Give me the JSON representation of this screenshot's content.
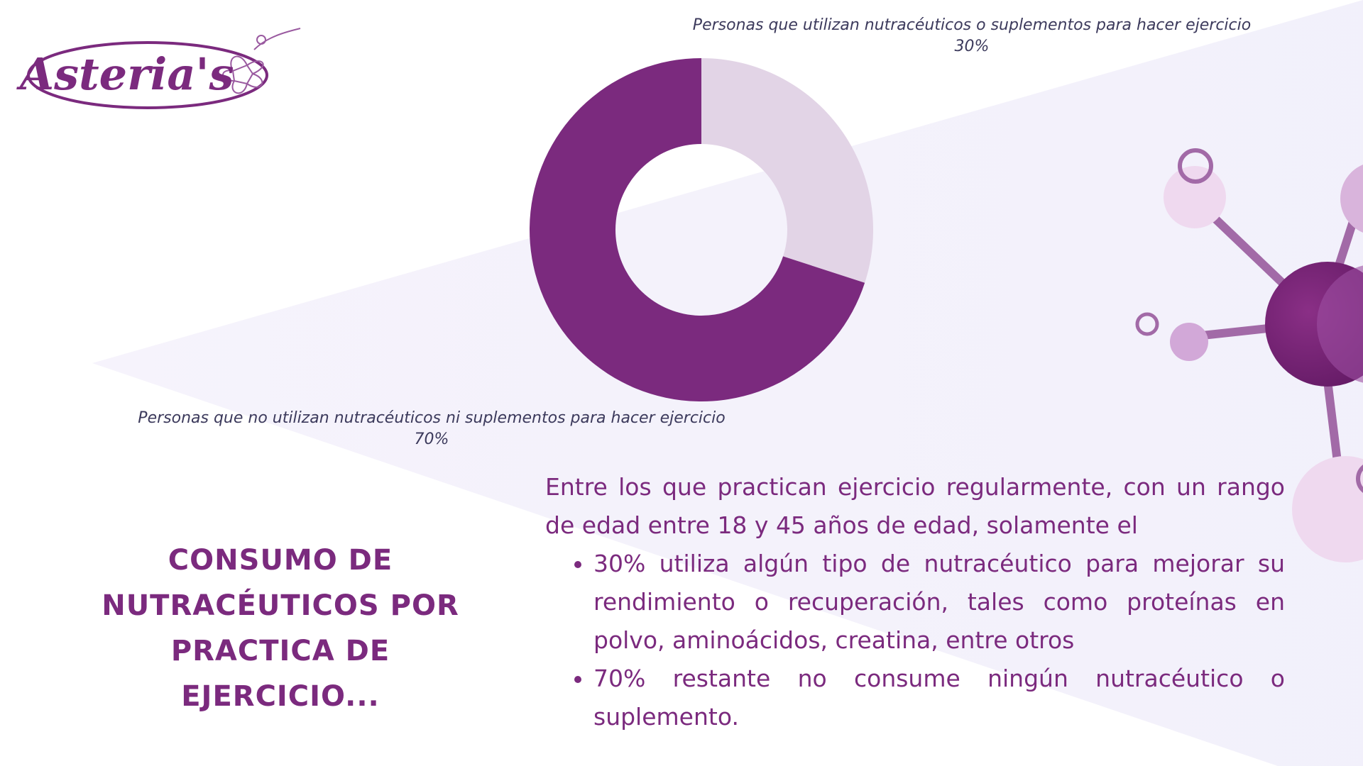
{
  "brand": {
    "logo_text": "Asteria's"
  },
  "colors": {
    "accent": "#7b2a7e",
    "slice_light": "#e2d4e6",
    "label_text": "#3c3a5c",
    "molecule_pink": "#efd9ef",
    "molecule_mauve": "#d2a8d8",
    "molecule_stick": "#a26aa7"
  },
  "chart_data": {
    "type": "pie",
    "donut": true,
    "slices": [
      {
        "label": "Personas que utilizan nutracéuticos o suplementos para hacer ejercicio",
        "value": 30,
        "value_label": "30%",
        "color": "#e2d4e6"
      },
      {
        "label": "Personas que no utilizan nutracéuticos ni suplementos para hacer ejercicio",
        "value": 70,
        "value_label": "70%",
        "color": "#7b2a7e"
      }
    ]
  },
  "section_title": "Consumo de nutracéuticos por practica de ejercicio...",
  "body": {
    "intro": " Entre los que practican ejercicio regularmente, con un rango de edad  entre 18 y 45 años de edad, solamente el",
    "bullets": [
      "30% utiliza algún tipo de nutracéutico para mejorar su rendimiento o recuperación, tales como proteínas en polvo, aminoácidos, creatina, entre otros",
      " 70% restante no consume ningún nutracéutico o suplemento."
    ]
  }
}
